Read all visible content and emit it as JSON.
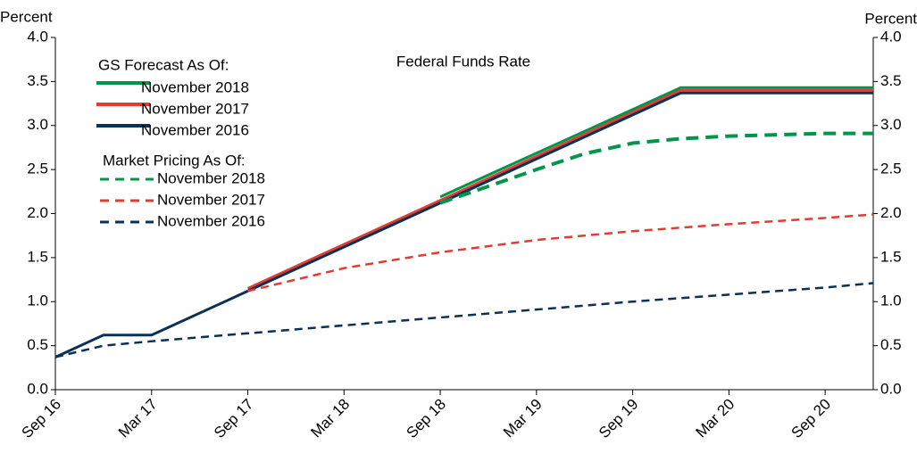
{
  "chart_data": {
    "type": "line",
    "title": "Federal Funds Rate",
    "ylabel": "Percent",
    "y2label": "Percent",
    "legend_titles": [
      "GS Forecast As Of:",
      "Market Pricing As Of:"
    ],
    "xlim": [
      "2016-09",
      "2020-12"
    ],
    "xticks": [
      {
        "value": "2016-09",
        "label": "Sep 16"
      },
      {
        "value": "2017-03",
        "label": "Mar 17"
      },
      {
        "value": "2017-09",
        "label": "Sep 17"
      },
      {
        "value": "2018-03",
        "label": "Mar 18"
      },
      {
        "value": "2018-09",
        "label": "Sep 18"
      },
      {
        "value": "2019-03",
        "label": "Mar 19"
      },
      {
        "value": "2019-09",
        "label": "Sep 19"
      },
      {
        "value": "2020-03",
        "label": "Mar 20"
      },
      {
        "value": "2020-09",
        "label": "Sep 20"
      }
    ],
    "ylim": [
      0,
      4
    ],
    "yticks": [
      {
        "value": 0,
        "label": "0.0"
      },
      0.5,
      {
        "value": 1,
        "label": "1.0"
      },
      1.5,
      {
        "value": 2,
        "label": "2.0"
      },
      2.5,
      {
        "value": 3,
        "label": "3.0"
      },
      3.5,
      {
        "value": 4,
        "label": "4.0"
      }
    ],
    "y2lim": [
      0,
      4
    ],
    "y2ticks": [
      {
        "value": 0,
        "label": "0.0"
      },
      0.5,
      {
        "value": 1,
        "label": "1.0"
      },
      1.5,
      {
        "value": 2,
        "label": "2.0"
      },
      2.5,
      {
        "value": 3,
        "label": "3.0"
      },
      3.5,
      {
        "value": 4,
        "label": "4.0"
      }
    ],
    "series": [
      {
        "name": "November 2018",
        "color": "#00954b",
        "style": "solid",
        "x": [
          "2018-09",
          "2019-12",
          "2020-12"
        ],
        "values": [
          2.19,
          3.43,
          3.43
        ]
      },
      {
        "name": "November 2017",
        "color": "#e03c31",
        "style": "solid",
        "x": [
          "2017-09",
          "2019-12",
          "2020-12"
        ],
        "values": [
          1.15,
          3.4,
          3.4
        ]
      },
      {
        "name": "November 2016",
        "color": "#0b3256",
        "style": "solid",
        "x": [
          "2016-09",
          "2016-12",
          "2017-03",
          "2017-09",
          "2018-09",
          "2019-12",
          "2020-12"
        ],
        "values": [
          0.37,
          0.62,
          0.62,
          1.12,
          2.12,
          3.37,
          3.37
        ]
      },
      {
        "name": "November 2018",
        "color": "#00954b",
        "style": "dashed",
        "x": [
          "2018-09",
          "2019-03",
          "2019-06",
          "2019-09",
          "2019-12",
          "2020-03",
          "2020-09",
          "2020-12"
        ],
        "values": [
          2.12,
          2.5,
          2.68,
          2.8,
          2.85,
          2.88,
          2.91,
          2.91
        ]
      },
      {
        "name": "November 2017",
        "color": "#e03c31",
        "style": "dashed",
        "x": [
          "2017-09",
          "2018-03",
          "2018-09",
          "2019-03",
          "2019-09",
          "2020-03",
          "2020-09",
          "2020-12"
        ],
        "values": [
          1.12,
          1.38,
          1.56,
          1.7,
          1.8,
          1.88,
          1.95,
          1.99
        ]
      },
      {
        "name": "November 2016",
        "color": "#0b3256",
        "style": "dashed",
        "x": [
          "2016-09",
          "2016-12",
          "2017-03",
          "2017-09",
          "2018-03",
          "2018-09",
          "2019-03",
          "2019-09",
          "2020-03",
          "2020-09",
          "2020-12"
        ],
        "values": [
          0.37,
          0.5,
          0.55,
          0.64,
          0.73,
          0.82,
          0.91,
          1.0,
          1.08,
          1.16,
          1.21
        ]
      }
    ]
  }
}
